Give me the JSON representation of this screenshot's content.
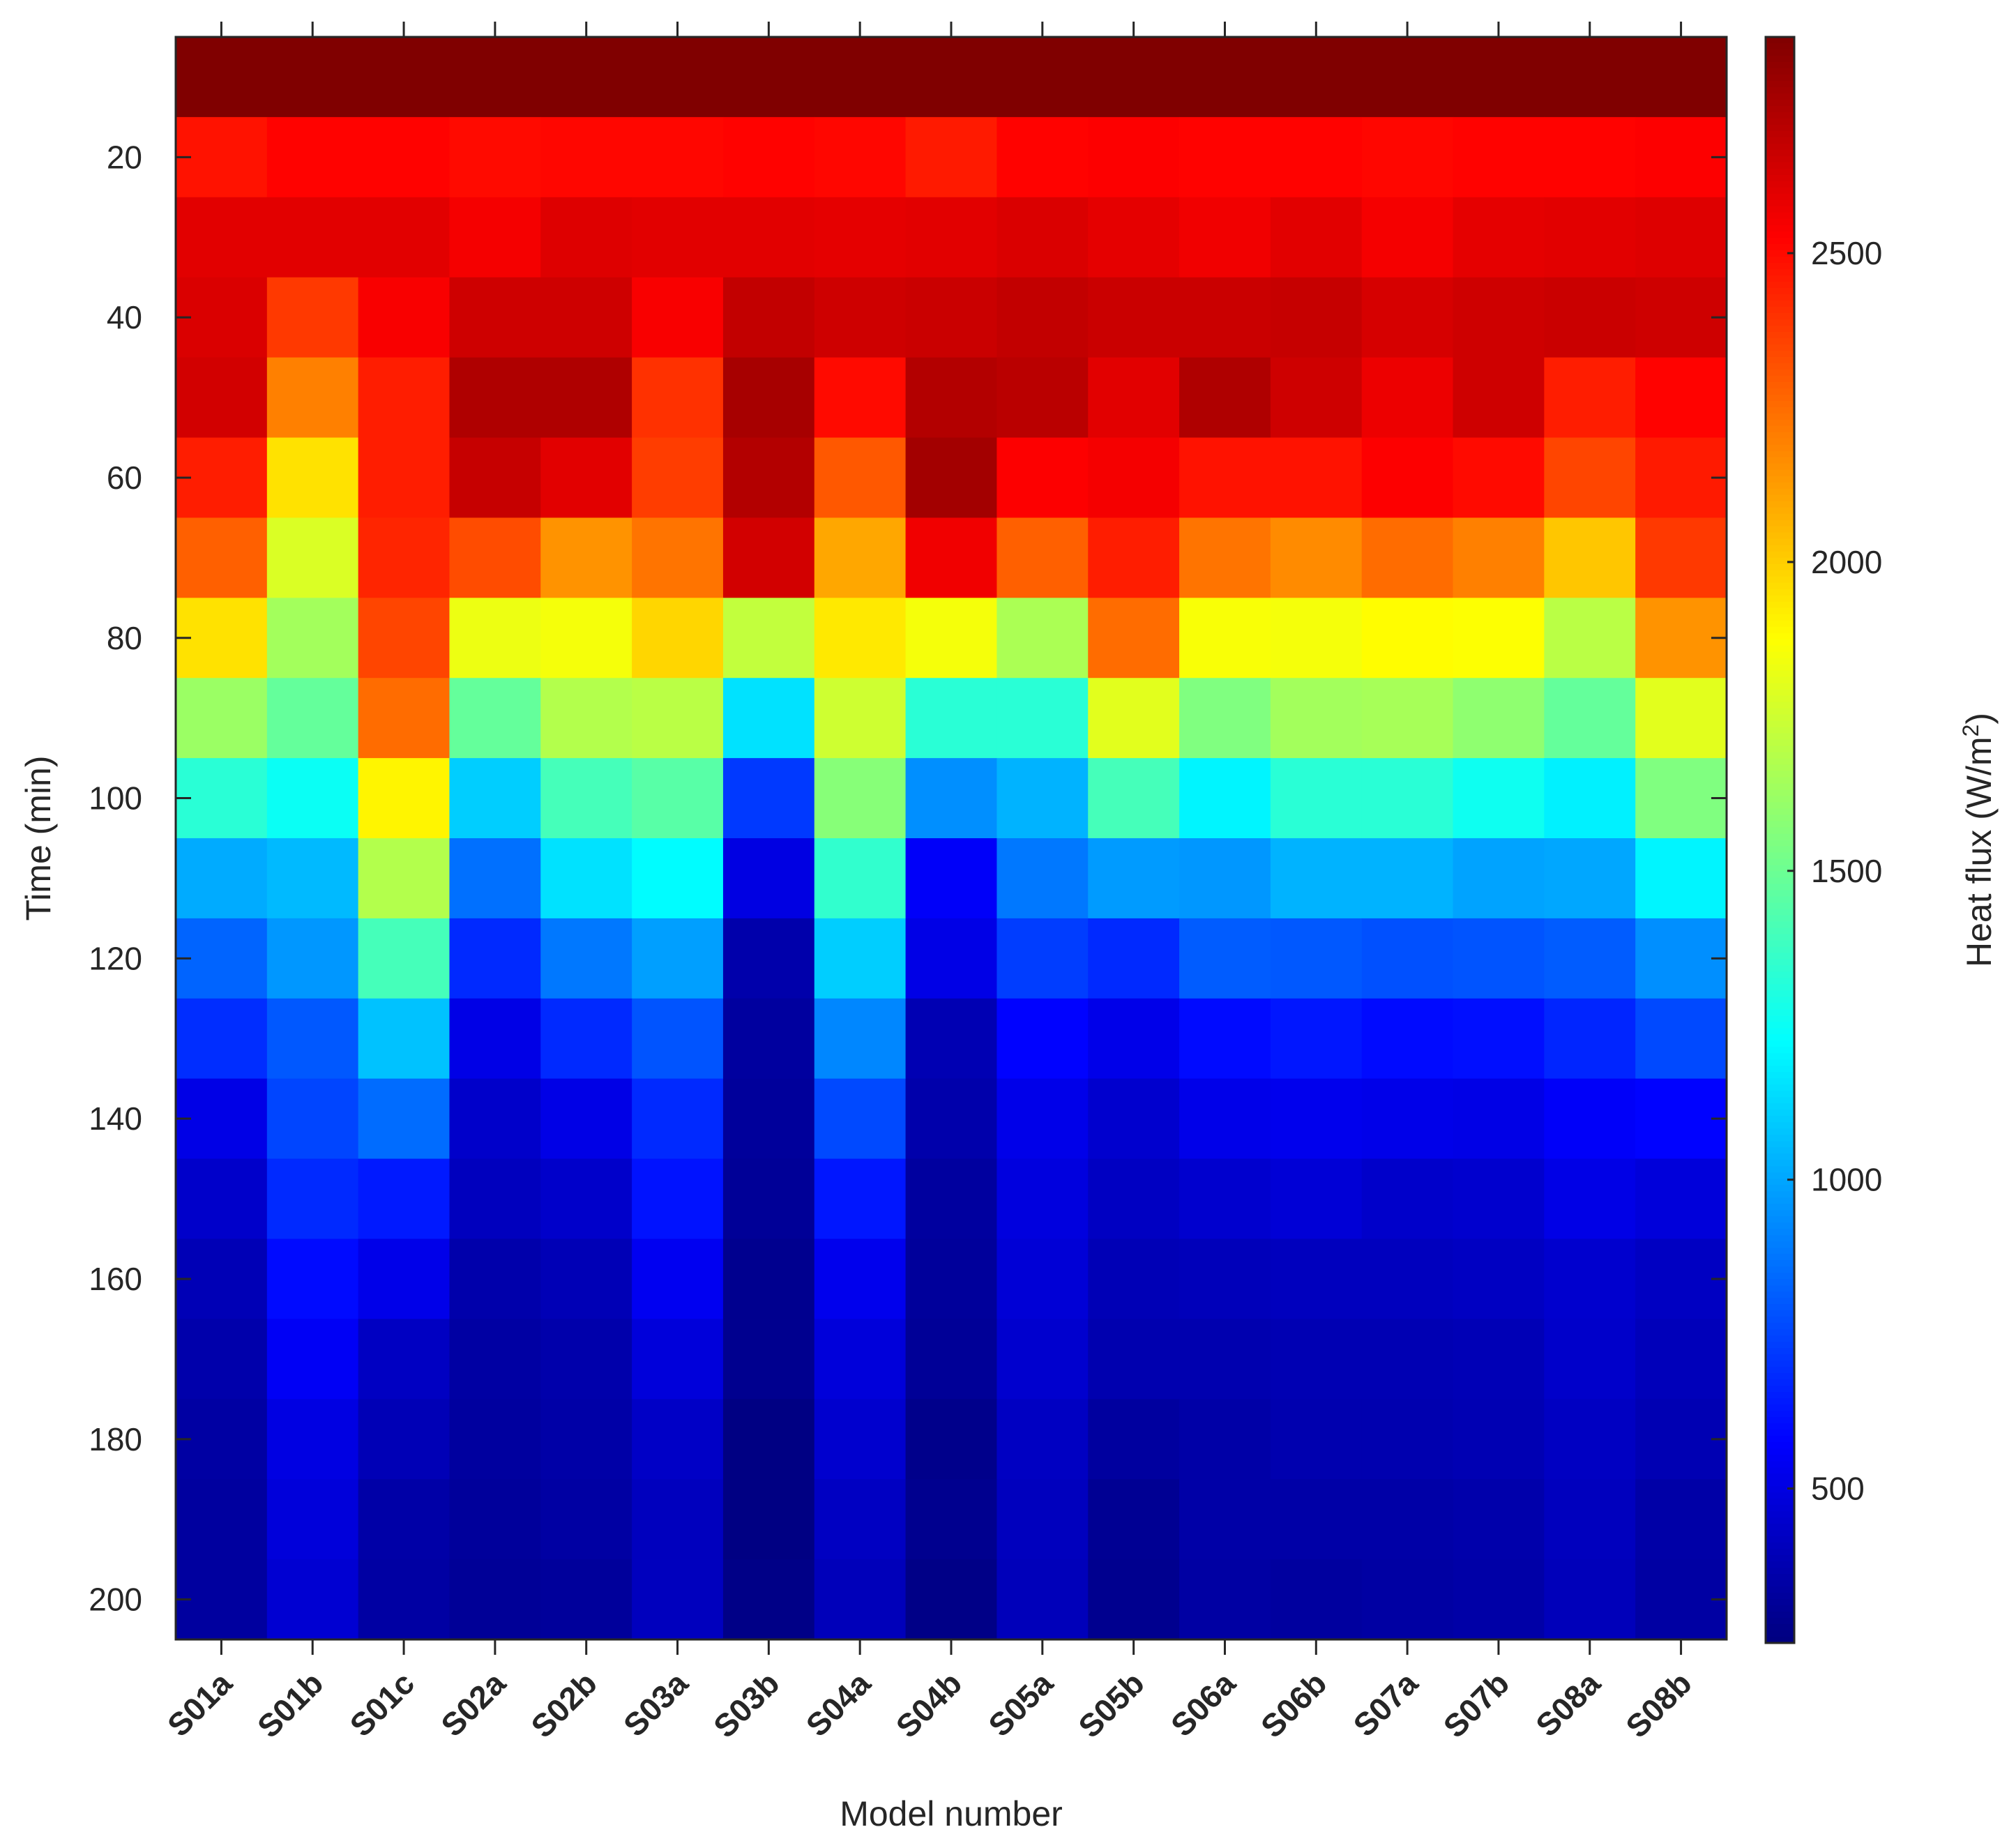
{
  "chart_data": {
    "type": "heatmap",
    "title": "",
    "xlabel": "Model number",
    "ylabel": "Time (min)",
    "colorbar_label": "Heat flux (W/m",
    "colorbar_label_sup": "2",
    "colorbar_label_end": ")",
    "colormap": "jet",
    "colorbar_range": [
      250,
      2850
    ],
    "colorbar_ticks": [
      500,
      1000,
      1500,
      2000,
      2500
    ],
    "categories": [
      "S01a",
      "S01b",
      "S01c",
      "S02a",
      "S02b",
      "S03a",
      "S03b",
      "S04a",
      "S04b",
      "S05a",
      "S05b",
      "S06a",
      "S06b",
      "S07a",
      "S07b",
      "S08a",
      "S08b"
    ],
    "y": [
      10,
      20,
      30,
      40,
      50,
      60,
      70,
      80,
      90,
      100,
      110,
      120,
      130,
      140,
      150,
      160,
      170,
      180,
      190,
      200
    ],
    "ylim": [
      5,
      205
    ],
    "y_ticks": [
      20,
      40,
      60,
      80,
      100,
      120,
      140,
      160,
      180,
      200
    ],
    "grid": false,
    "values": [
      [
        2850,
        2850,
        2850,
        2850,
        2850,
        2850,
        2850,
        2850,
        2850,
        2850,
        2850,
        2850,
        2850,
        2850,
        2850,
        2850,
        2850
      ],
      [
        2480,
        2520,
        2520,
        2500,
        2510,
        2510,
        2520,
        2510,
        2460,
        2520,
        2530,
        2520,
        2520,
        2510,
        2520,
        2520,
        2530
      ],
      [
        2600,
        2600,
        2600,
        2550,
        2610,
        2600,
        2600,
        2590,
        2600,
        2620,
        2590,
        2560,
        2600,
        2550,
        2590,
        2600,
        2610
      ],
      [
        2620,
        2380,
        2540,
        2650,
        2650,
        2540,
        2680,
        2650,
        2660,
        2680,
        2660,
        2660,
        2670,
        2630,
        2650,
        2660,
        2650
      ],
      [
        2640,
        2200,
        2450,
        2730,
        2730,
        2400,
        2750,
        2500,
        2720,
        2700,
        2600,
        2730,
        2650,
        2570,
        2650,
        2450,
        2520
      ],
      [
        2450,
        1950,
        2450,
        2670,
        2600,
        2370,
        2720,
        2300,
        2760,
        2530,
        2550,
        2480,
        2480,
        2530,
        2500,
        2350,
        2460
      ],
      [
        2280,
        1780,
        2430,
        2330,
        2150,
        2230,
        2640,
        2100,
        2560,
        2280,
        2450,
        2230,
        2170,
        2250,
        2200,
        2020,
        2380
      ],
      [
        1950,
        1640,
        2350,
        1830,
        1850,
        1980,
        1720,
        1930,
        1850,
        1660,
        2250,
        1860,
        1850,
        1880,
        1870,
        1700,
        2150
      ],
      [
        1620,
        1480,
        2250,
        1480,
        1680,
        1700,
        1150,
        1750,
        1330,
        1330,
        1800,
        1550,
        1640,
        1650,
        1590,
        1480,
        1800
      ],
      [
        1330,
        1250,
        1900,
        1100,
        1400,
        1450,
        720,
        1570,
        940,
        1030,
        1400,
        1200,
        1330,
        1330,
        1260,
        1190,
        1550
      ],
      [
        1010,
        1050,
        1680,
        860,
        1150,
        1220,
        500,
        1350,
        560,
        880,
        970,
        960,
        1030,
        1030,
        990,
        1000,
        1200
      ],
      [
        830,
        960,
        1400,
        680,
        880,
        980,
        360,
        1100,
        510,
        730,
        680,
        810,
        800,
        780,
        790,
        810,
        940
      ],
      [
        690,
        800,
        1070,
        510,
        680,
        790,
        330,
        920,
        380,
        580,
        520,
        600,
        630,
        600,
        610,
        670,
        760
      ],
      [
        510,
        750,
        850,
        440,
        510,
        680,
        320,
        760,
        360,
        520,
        450,
        520,
        530,
        520,
        510,
        560,
        580
      ],
      [
        440,
        680,
        640,
        410,
        440,
        620,
        310,
        630,
        330,
        490,
        420,
        450,
        470,
        440,
        450,
        510,
        480
      ],
      [
        390,
        600,
        520,
        360,
        390,
        540,
        290,
        530,
        320,
        470,
        390,
        400,
        410,
        410,
        420,
        450,
        420
      ],
      [
        360,
        550,
        420,
        340,
        360,
        480,
        290,
        480,
        310,
        450,
        370,
        370,
        380,
        380,
        390,
        440,
        400
      ],
      [
        340,
        500,
        390,
        330,
        350,
        430,
        260,
        450,
        280,
        420,
        330,
        350,
        370,
        370,
        380,
        420,
        380
      ],
      [
        330,
        480,
        350,
        320,
        340,
        410,
        260,
        420,
        290,
        410,
        300,
        350,
        350,
        350,
        360,
        410,
        350
      ],
      [
        330,
        460,
        340,
        310,
        320,
        410,
        270,
        400,
        270,
        400,
        290,
        340,
        330,
        340,
        350,
        400,
        340
      ]
    ]
  }
}
